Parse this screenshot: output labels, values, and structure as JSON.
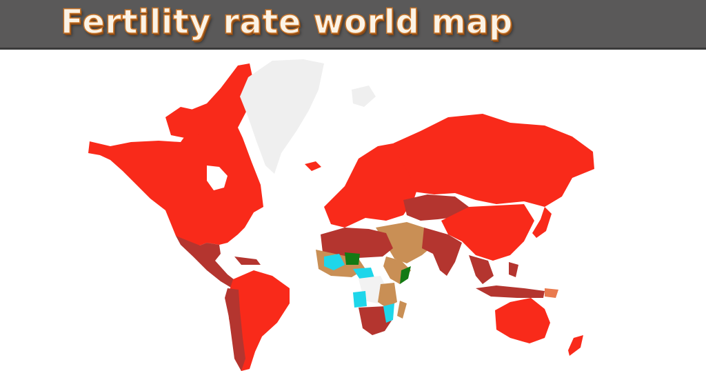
{
  "title": "Fertility rate world map",
  "colors": {
    "lowest": "#f92a1a",
    "low": "#b4352f",
    "mid_low": "#e97a4e",
    "mid": "#c98f55",
    "high": "#1ed6ea",
    "very_high": "#f2f2f2",
    "highest": "#137a14",
    "no_data": "#efefef",
    "title_bar": "#5a5959",
    "title_text": "#fbf3e6"
  }
}
